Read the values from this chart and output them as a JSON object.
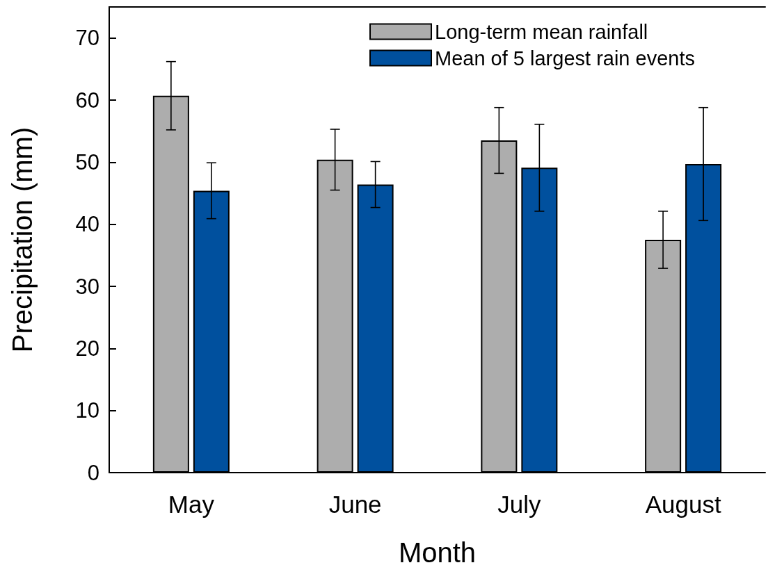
{
  "chart_data": {
    "type": "bar",
    "xlabel": "Month",
    "ylabel": "Precipitation (mm)",
    "categories": [
      "May",
      "June",
      "July",
      "August"
    ],
    "series": [
      {
        "name": "Long-term mean rainfall",
        "color": "#adadad",
        "values": [
          60.7,
          50.4,
          53.5,
          37.5
        ],
        "errors": [
          5.5,
          4.9,
          5.3,
          4.6
        ]
      },
      {
        "name": "Mean of 5 largest rain events",
        "color": "#00509e",
        "values": [
          45.4,
          46.4,
          49.1,
          49.7
        ],
        "errors": [
          4.5,
          3.7,
          7.0,
          9.1
        ]
      }
    ],
    "ylim": [
      0,
      75
    ],
    "yticks": [
      0,
      10,
      20,
      30,
      40,
      50,
      60,
      70
    ],
    "grid": false,
    "legend": "top right"
  }
}
